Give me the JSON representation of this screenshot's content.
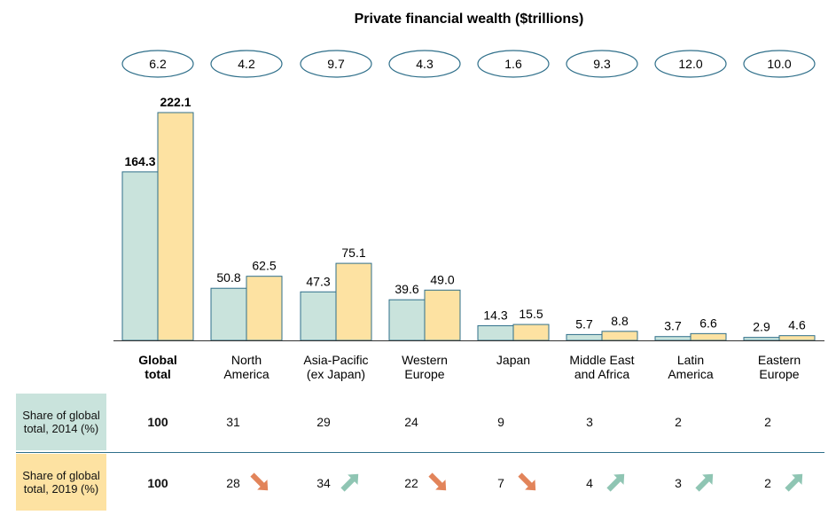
{
  "chart_data": {
    "type": "bar",
    "title": "Private financial wealth ($trillions)",
    "categories": [
      "Global\ntotal",
      "North\nAmerica",
      "Asia-Pacific\n(ex Japan)",
      "Western\nEurope",
      "Japan",
      "Middle East\nand Africa",
      "Latin\nAmerica",
      "Eastern\nEurope"
    ],
    "series": [
      {
        "values": [
          164.3,
          50.8,
          47.3,
          39.6,
          14.3,
          5.7,
          3.7,
          2.9
        ],
        "color": "#c9e3dc"
      },
      {
        "values": [
          222.1,
          62.5,
          75.1,
          49.0,
          15.5,
          8.8,
          6.6,
          4.6
        ],
        "color": "#fde2a2"
      }
    ],
    "value_labels": [
      [
        "164.3",
        "222.1"
      ],
      [
        "50.8",
        "62.5"
      ],
      [
        "47.3",
        "75.1"
      ],
      [
        "39.6",
        "49.0"
      ],
      [
        "14.3",
        "15.5"
      ],
      [
        "5.7",
        "8.8"
      ],
      [
        "3.7",
        "6.6"
      ],
      [
        "2.9",
        "4.6"
      ]
    ],
    "growth_ovals": [
      "6.2",
      "4.2",
      "9.7",
      "4.3",
      "1.6",
      "9.3",
      "12.0",
      "10.0"
    ],
    "ylim": [
      0,
      222.1
    ],
    "grid": false,
    "xlabel": "",
    "ylabel": ""
  },
  "share_table": {
    "row_2014": {
      "label": "Share of global total, 2014 (%)",
      "values": [
        "100",
        "31",
        "29",
        "24",
        "9",
        "3",
        "2",
        "2"
      ]
    },
    "row_2019": {
      "label": "Share of global total, 2019 (%)",
      "values": [
        "100",
        "28",
        "34",
        "22",
        "7",
        "4",
        "3",
        "2"
      ],
      "trend_icons": [
        "",
        "arrow-down-icon",
        "arrow-up-icon",
        "arrow-down-icon",
        "arrow-down-icon",
        "arrow-up-icon",
        "arrow-up-icon",
        "arrow-up-icon"
      ]
    }
  },
  "colors": {
    "bar_2014": "#c9e3dc",
    "bar_2019": "#fde2a2",
    "bar_outline": "#2f6f8a",
    "oval_outline": "#2f6f8a",
    "arrow_down": "#e2845a",
    "arrow_up": "#8fc5b3"
  }
}
